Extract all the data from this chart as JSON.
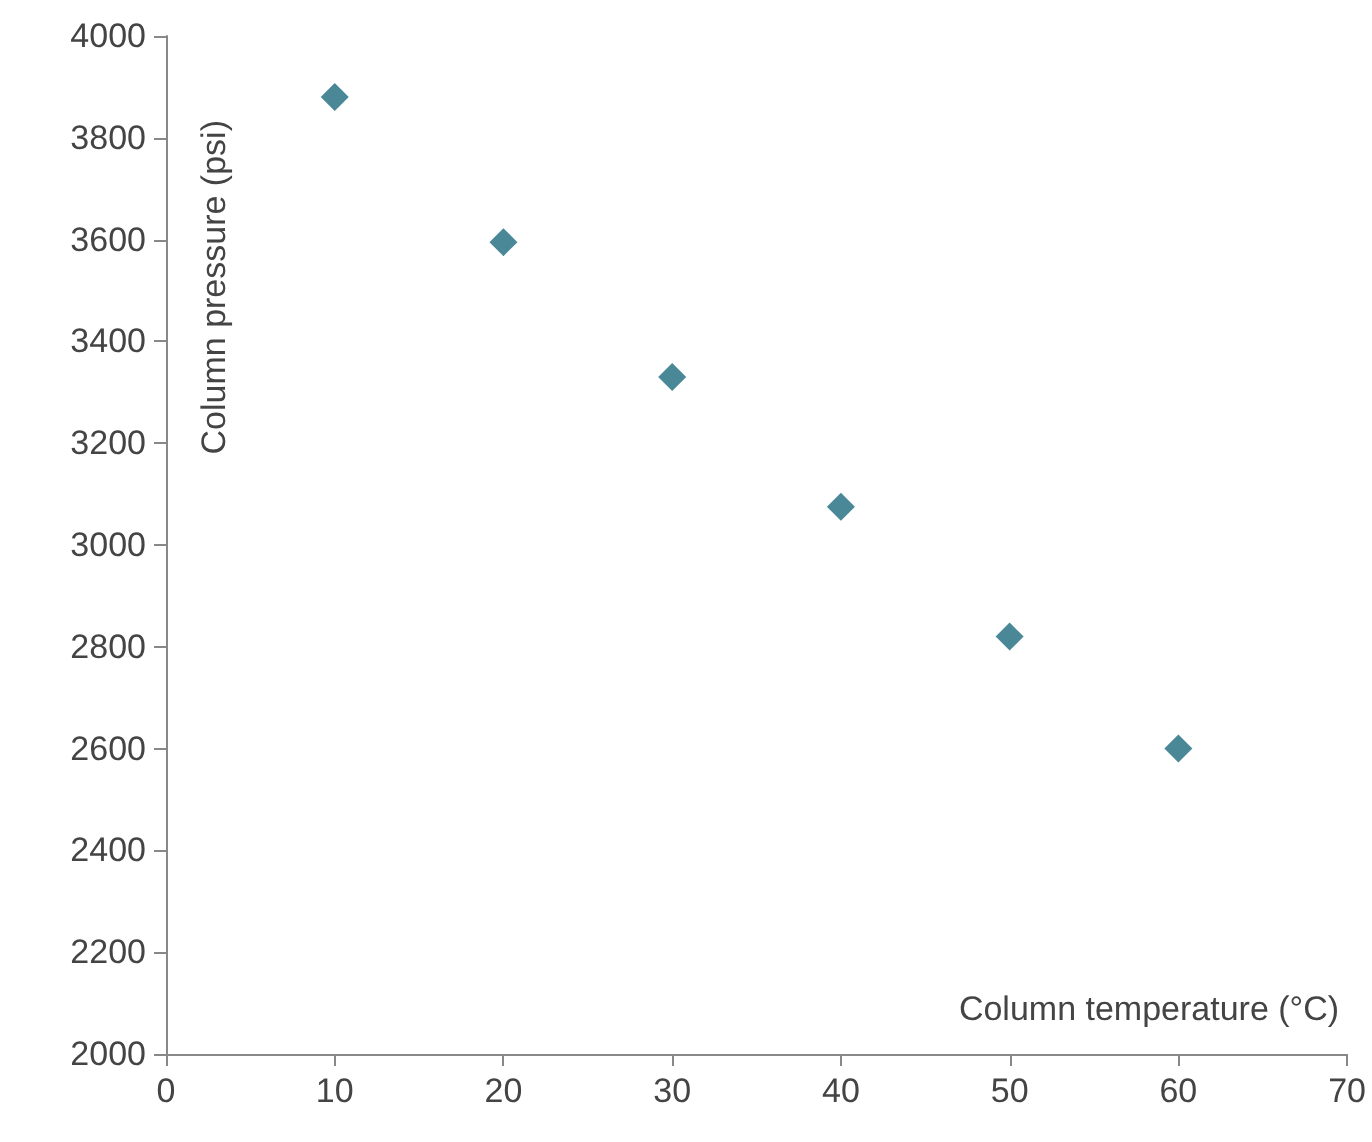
{
  "chart_data": {
    "type": "scatter",
    "xlabel": "Column temperature (°C)",
    "ylabel": "Column pressure (psi)",
    "x": [
      10,
      20,
      30,
      40,
      50,
      60
    ],
    "series": [
      {
        "color": "#1d6a7e",
        "values": [
          3880,
          3595,
          3330,
          3075,
          2820,
          2600
        ]
      }
    ],
    "xlim": [
      0,
      70
    ],
    "xticks": [
      0,
      10,
      20,
      30,
      40,
      50,
      60,
      70
    ],
    "ylim": [
      2000,
      4000
    ],
    "yticks": [
      2000,
      2200,
      2400,
      2600,
      2800,
      3000,
      3200,
      3400,
      3600,
      3800,
      4000
    ],
    "marker": "diamond",
    "grid": false
  }
}
